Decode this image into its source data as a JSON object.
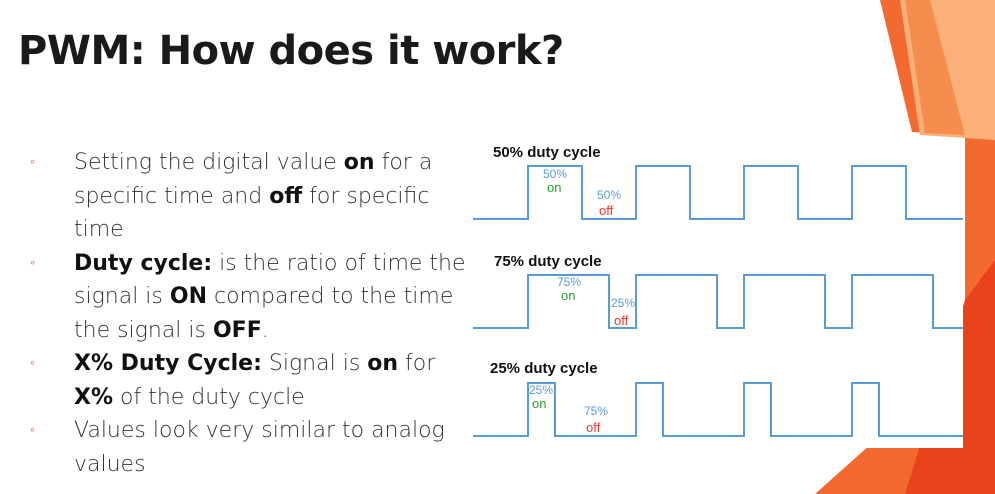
{
  "slide": {
    "title": "PWM: How does it work?",
    "bullet_marker": "◦",
    "bullets": [
      {
        "pre": "Setting the digital value ",
        "b1": "on",
        "mid": " for a specific time and ",
        "b2": "off",
        "post": " for specific time"
      },
      {
        "b1": "Duty cycle:",
        "mid": "  is the ratio of time the signal is ",
        "b2": "ON",
        "mid2": " compared to the time the signal is ",
        "b3": "OFF",
        "post": "."
      },
      {
        "b1": "X% Duty Cycle:",
        "mid": " Signal is ",
        "b2": "on",
        "mid2": " for ",
        "b3": "X%",
        "post": " of the duty cycle"
      },
      {
        "text": "Values look very similar to analog values"
      }
    ]
  },
  "diagram": {
    "colors": {
      "wave": "#5b9bd5",
      "on": "#2e9e2e",
      "off": "#e53935"
    },
    "panels": [
      {
        "label": "50% duty cycle",
        "duty": 0.5,
        "on_pct": "50%",
        "on_text": "on",
        "off_pct": "50%",
        "off_text": "off"
      },
      {
        "label": "75% duty cycle",
        "duty": 0.75,
        "on_pct": "75%",
        "on_text": "on",
        "off_pct": "25%",
        "off_text": "off"
      },
      {
        "label": "25% duty cycle",
        "duty": 0.25,
        "on_pct": "25%",
        "on_text": "on",
        "off_pct": "75%",
        "off_text": "off"
      }
    ]
  }
}
